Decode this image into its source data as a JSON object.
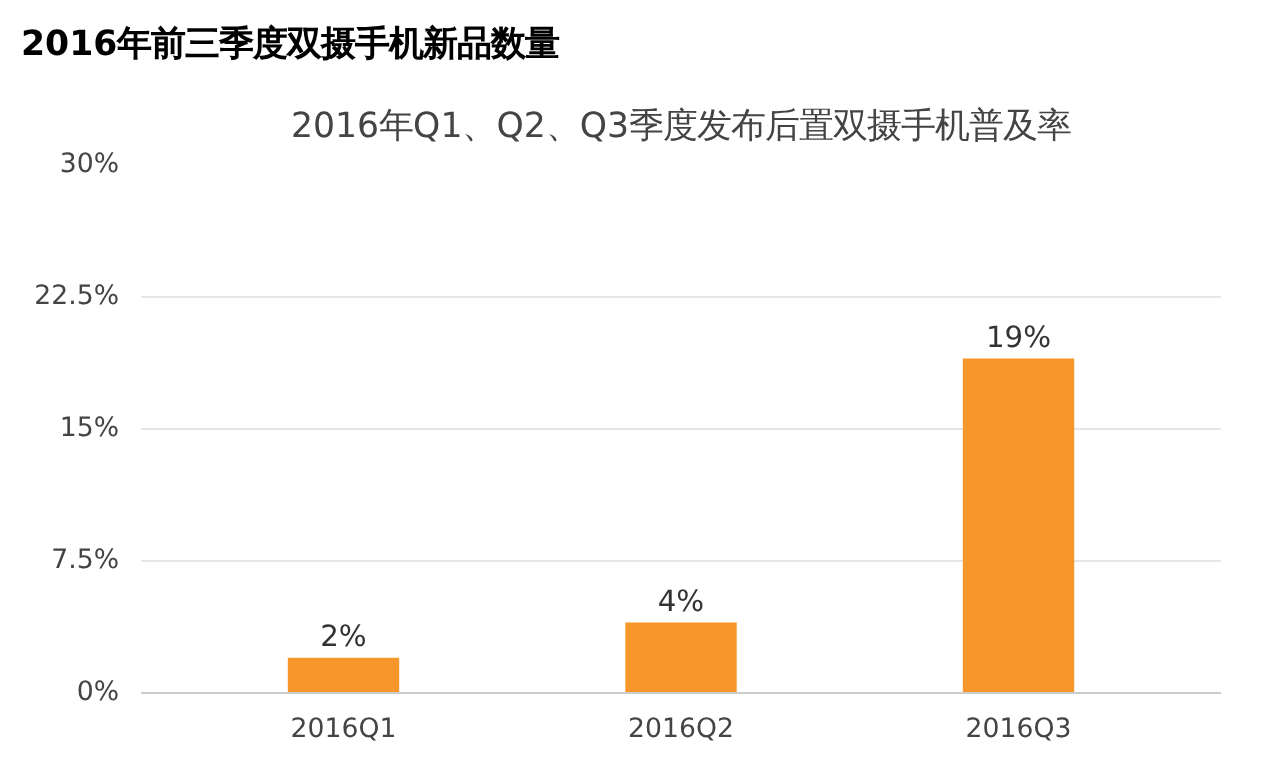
{
  "chart_data": {
    "type": "bar",
    "title": "2016年前三季度双摄手机新品数量",
    "subtitle": "2016年Q1、Q2、Q3季度发布后置双摄手机普及率",
    "categories": [
      "2016Q1",
      "2016Q2",
      "2016Q3"
    ],
    "values": [
      2,
      4,
      19
    ],
    "color": "#f7962a",
    "value_labels": [
      "2%",
      "4%",
      "19%"
    ],
    "ylim": [
      0,
      30
    ],
    "yticks": [
      {
        "value": 0,
        "label": "0%"
      },
      {
        "value": 7.5,
        "label": "7.5%"
      },
      {
        "value": 15,
        "label": "15%"
      },
      {
        "value": 22.5,
        "label": "22.5%"
      },
      {
        "value": 30,
        "label": "30%"
      }
    ],
    "grid": "y"
  }
}
